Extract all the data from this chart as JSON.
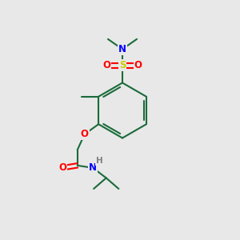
{
  "background_color": "#e8e8e8",
  "atom_colors": {
    "N": "#0000ff",
    "O": "#ff0000",
    "S": "#cccc00",
    "H": "#808080"
  },
  "bond_color": "#1a6b3a",
  "figsize": [
    3.0,
    3.0
  ],
  "dpi": 100
}
